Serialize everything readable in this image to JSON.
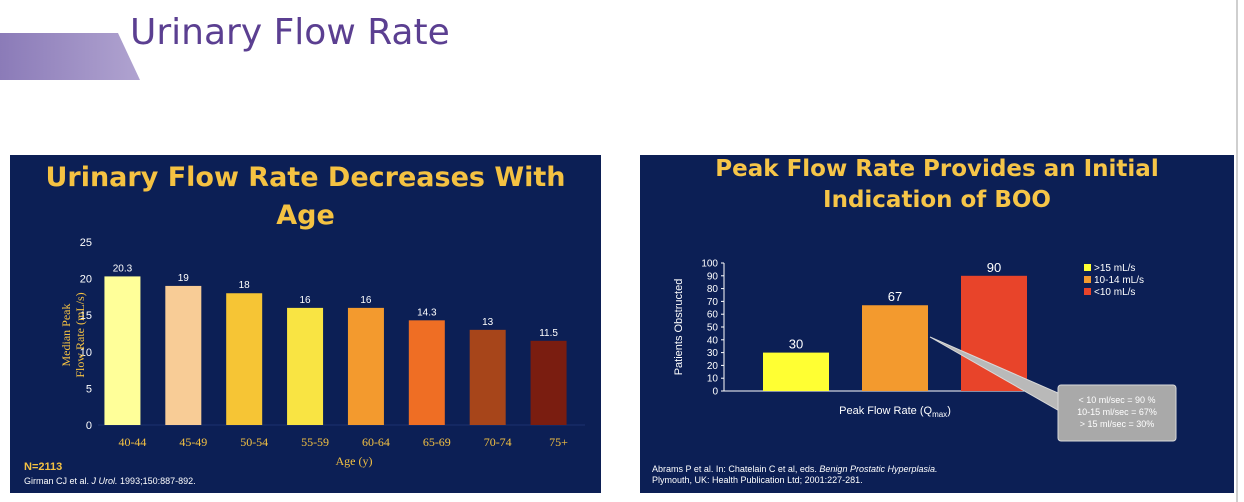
{
  "slide": {
    "title": "Urinary Flow Rate"
  },
  "left": {
    "title_line1": "Urinary Flow Rate Decreases With",
    "title_line2": "Age",
    "n_label": "N=2113",
    "citation_prefix": "Girman CJ et al. ",
    "citation_journal": "J Urol.",
    "citation_suffix": " 1993;150:887-892."
  },
  "right": {
    "title_line1": "Peak Flow Rate Provides an Initial",
    "title_line2": "Indication of BOO",
    "callout_lines": [
      "< 10 ml/sec = 90 %",
      "10-15 ml/sec = 67%",
      "> 15 ml/sec = 30%"
    ],
    "citation_line1_prefix": "Abrams P et al. In: Chatelain C et al, eds. ",
    "citation_line1_italic": "Benign Prostatic Hyperplasia.",
    "citation_line2": "Plymouth, UK: Health Publication Ltd; 2001:227-281."
  },
  "chart_data": [
    {
      "type": "bar",
      "categories": [
        "40-44",
        "45-49",
        "50-54",
        "55-59",
        "60-64",
        "65-69",
        "70-74",
        "75+"
      ],
      "values": [
        20.3,
        19,
        18,
        16,
        16,
        14.3,
        13,
        11.5
      ],
      "value_labels": [
        "20.3",
        "19",
        "18",
        "16",
        "16",
        "14.3",
        "13",
        "11.5"
      ],
      "colors": [
        "#ffff99",
        "#f8cc96",
        "#f6c535",
        "#f9e443",
        "#f39a2e",
        "#ef6e24",
        "#a7451a",
        "#7a1d10"
      ],
      "title": "Urinary Flow Rate Decreases With Age",
      "xlabel": "Age (y)",
      "ylabel_line1": "Median Peak",
      "ylabel_line2": "Flow Rate (mL/s)",
      "ylim": [
        0,
        25
      ],
      "yticks": [
        "0",
        "5",
        "10",
        "15",
        "20",
        "25"
      ]
    },
    {
      "type": "bar",
      "categories": [
        ">15 mL/s",
        "10-14 mL/s",
        "<10 mL/s"
      ],
      "values": [
        30,
        67,
        90
      ],
      "value_labels": [
        "30",
        "67",
        "90"
      ],
      "colors": [
        "#ffff33",
        "#f39a2e",
        "#e8442a"
      ],
      "title": "Peak Flow Rate Provides an Initial Indication of BOO",
      "xlabel": "Peak Flow Rate (Q",
      "xlabel_sub": "max",
      "xlabel_end": ")",
      "ylabel": "Patients Obstructed",
      "ylim": [
        0,
        100
      ],
      "yticks": [
        "0",
        "10",
        "20",
        "30",
        "40",
        "50",
        "60",
        "70",
        "80",
        "90",
        "100"
      ],
      "legend": [
        ">15 mL/s",
        "10-14 mL/s",
        "<10 mL/s"
      ]
    }
  ]
}
